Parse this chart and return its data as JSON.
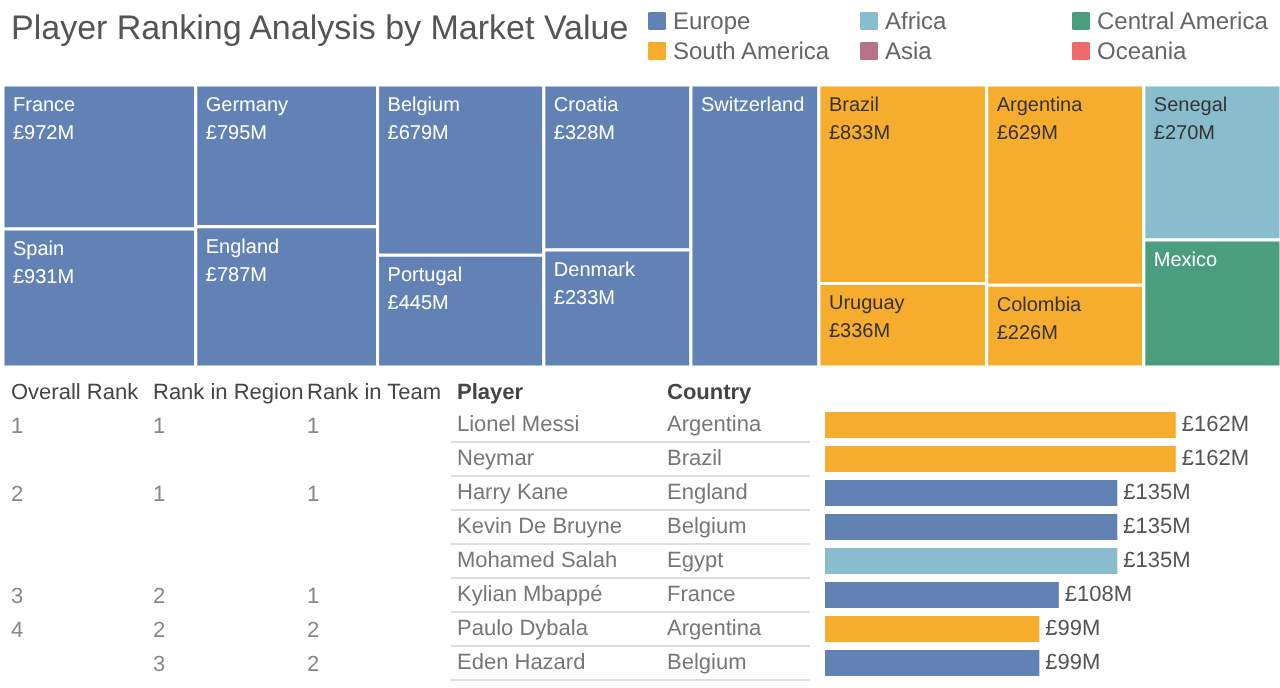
{
  "chart_data": [
    {
      "type": "other",
      "title": "Player Ranking Analysis by Market Value",
      "legend": "top right",
      "categories": [
        "France",
        "Spain",
        "Germany",
        "England",
        "Belgium",
        "Portugal",
        "Croatia",
        "Denmark",
        "Switzerland",
        "Brazil",
        "Uruguay",
        "Argentina",
        "Colombia",
        "Senegal",
        "Mexico"
      ],
      "colors": [
        "#6282b5",
        "#6282b5",
        "#6282b5",
        "#6282b5",
        "#6282b5",
        "#6282b5",
        "#6282b5",
        "#6282b5",
        "#6282b5",
        "#f6ad2d",
        "#f6ad2d",
        "#f6ad2d",
        "#f6ad2d",
        "#89bccd",
        "#4a9e7f"
      ],
      "series": [
        {
          "name": "Europe",
          "color": "#6282b5",
          "values": [
            972,
            931,
            795,
            787,
            679,
            445,
            328,
            233,
            null,
            null,
            null,
            null,
            null,
            null,
            null
          ],
          "value_labels": [
            "£972M",
            "£931M",
            "£795M",
            "£787M",
            "£679M",
            "£445M",
            "£328M",
            "£233M",
            null,
            null,
            null,
            null,
            null,
            null,
            null
          ]
        },
        {
          "name": "South America",
          "color": "#f6ad2d",
          "values": [
            null,
            null,
            null,
            null,
            null,
            null,
            null,
            null,
            null,
            833,
            336,
            629,
            226,
            null,
            null
          ],
          "value_labels": [
            null,
            null,
            null,
            null,
            null,
            null,
            null,
            null,
            null,
            "£833M",
            "£336M",
            "£629M",
            "£226M",
            null,
            null
          ]
        },
        {
          "name": "Africa",
          "color": "#89bccd",
          "values": [
            null,
            null,
            null,
            null,
            null,
            null,
            null,
            null,
            null,
            null,
            null,
            null,
            null,
            270,
            null
          ],
          "value_labels": [
            null,
            null,
            null,
            null,
            null,
            null,
            null,
            null,
            null,
            null,
            null,
            null,
            null,
            "£270M",
            null
          ]
        },
        {
          "name": "Asia",
          "color": "#b57289",
          "values": [
            null,
            null,
            null,
            null,
            null,
            null,
            null,
            null,
            null,
            null,
            null,
            null,
            null,
            null,
            null
          ]
        },
        {
          "name": "Central America",
          "color": "#4a9e7f",
          "values": [
            null,
            null,
            null,
            null,
            null,
            null,
            null,
            null,
            null,
            null,
            null,
            null,
            null,
            null,
            null
          ]
        },
        {
          "name": "Oceania",
          "color": "#ee6a6a",
          "values": [
            null,
            null,
            null,
            null,
            null,
            null,
            null,
            null,
            null,
            null,
            null,
            null,
            null,
            null,
            null
          ]
        }
      ]
    },
    {
      "type": "heatmap",
      "categories": [
        "Overall Rank",
        "Rank in Region",
        "Rank in Team"
      ],
      "ylabel": "Player",
      "y2label": "Country",
      "y_categories": [
        "Lionel Messi",
        "Neymar",
        "Harry Kane",
        "Kevin De Bruyne",
        "Mohamed Salah",
        "Kylian Mbappé",
        "Paulo Dybala",
        "Eden Hazard"
      ],
      "y2_categories": [
        "Argentina",
        "Brazil",
        "England",
        "Belgium",
        "Egypt",
        "France",
        "Argentina",
        "Belgium"
      ],
      "cells": [
        [
          1,
          1,
          1
        ],
        [
          null,
          null,
          null
        ],
        [
          2,
          1,
          1
        ],
        [
          null,
          null,
          null
        ],
        [
          null,
          null,
          null
        ],
        [
          3,
          2,
          1
        ],
        [
          4,
          2,
          2
        ],
        [
          null,
          3,
          2
        ]
      ],
      "data_labels": true,
      "grid": true
    },
    {
      "type": "bar",
      "orientation": "horizontal",
      "tick_labels": false,
      "categories": [
        null,
        null,
        null,
        null,
        null,
        null,
        null,
        null
      ],
      "values": [
        162,
        162,
        135,
        135,
        135,
        108,
        99,
        99
      ],
      "colors": [
        "#f6ad2d",
        "#f6ad2d",
        "#6282b5",
        "#6282b5",
        "#89bccd",
        "#6282b5",
        "#f6ad2d",
        "#6282b5"
      ],
      "value_labels": [
        "£162M",
        "£162M",
        "£135M",
        "£135M",
        "£135M",
        "£108M",
        "£99M",
        "£99M"
      ]
    }
  ]
}
